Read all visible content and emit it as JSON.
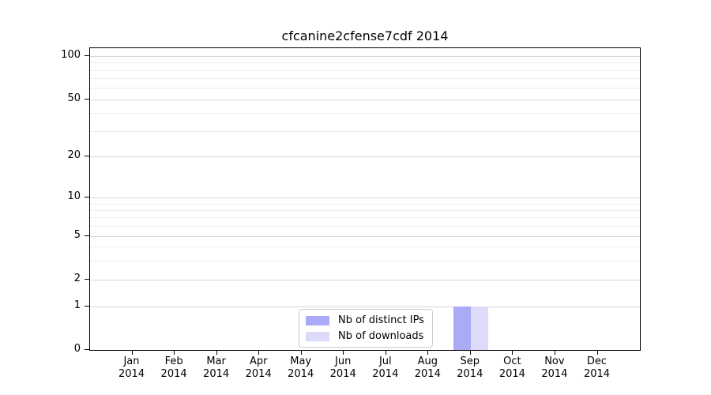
{
  "chart_data": {
    "type": "bar",
    "title": "cfcanine2cfense7cdf 2014",
    "categories": [
      "Jan",
      "Feb",
      "Mar",
      "Apr",
      "May",
      "Jun",
      "Jul",
      "Aug",
      "Sep",
      "Oct",
      "Nov",
      "Dec"
    ],
    "category_year": "2014",
    "series": [
      {
        "name": "Nb of distinct IPs",
        "color": "#aaaaf7",
        "values": [
          0,
          0,
          0,
          0,
          0,
          0,
          0,
          0,
          1,
          0,
          0,
          0
        ]
      },
      {
        "name": "Nb of downloads",
        "color": "#dcdcfa",
        "values": [
          0,
          0,
          0,
          0,
          0,
          0,
          0,
          0,
          1,
          0,
          0,
          0
        ]
      }
    ],
    "y_axis": {
      "ticks": [
        0,
        1,
        2,
        5,
        10,
        20,
        50,
        100
      ],
      "minor_ticks": [
        3,
        4,
        6,
        7,
        8,
        9,
        30,
        40,
        60,
        70,
        80,
        90
      ],
      "scale": "symlog",
      "ylim": [
        0,
        110
      ]
    },
    "grid": true,
    "legend_position": "lower-center-inside"
  }
}
